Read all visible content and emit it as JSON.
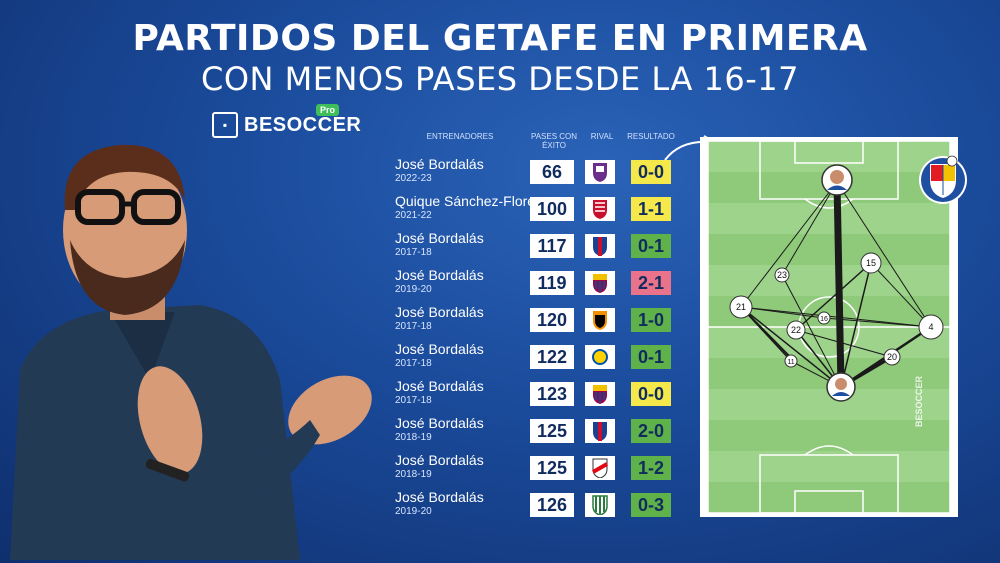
{
  "title_line1": "PARTIDOS DEL GETAFE EN PRIMERA",
  "title_line2": "CON MENOS PASES DESDE LA 16-17",
  "brand": {
    "name": "BESOCCER",
    "badge": "Pro"
  },
  "headers": {
    "coach": "ENTRENADORES",
    "passes": "PASES CON ÉXITO",
    "rival": "RIVAL",
    "result": "RESULTADO"
  },
  "colors": {
    "draw": "#f4e84a",
    "loss": "#e9738a",
    "win": "#5fb24a",
    "background": "#1a4a9a"
  },
  "matches": [
    {
      "coach": "José Bordalás",
      "season": "2022-23",
      "passes": "66",
      "result": "0-0",
      "outcome": "draw",
      "rival_icon": "valladolid-crest-icon"
    },
    {
      "coach": "Quique Sánchez-Flores",
      "season": "2021-22",
      "passes": "100",
      "result": "1-1",
      "outcome": "draw",
      "rival_icon": "granada-crest-icon"
    },
    {
      "coach": "José Bordalás",
      "season": "2017-18",
      "passes": "117",
      "result": "0-1",
      "outcome": "win",
      "rival_icon": "eibar-crest-icon"
    },
    {
      "coach": "José Bordalás",
      "season": "2019-20",
      "passes": "119",
      "result": "2-1",
      "outcome": "loss",
      "rival_icon": "barcelona-crest-icon"
    },
    {
      "coach": "José Bordalás",
      "season": "2017-18",
      "passes": "120",
      "result": "1-0",
      "outcome": "win",
      "rival_icon": "valencia-crest-icon"
    },
    {
      "coach": "José Bordalás",
      "season": "2017-18",
      "passes": "122",
      "result": "0-1",
      "outcome": "win",
      "rival_icon": "las-palmas-crest-icon"
    },
    {
      "coach": "José Bordalás",
      "season": "2017-18",
      "passes": "123",
      "result": "0-0",
      "outcome": "draw",
      "rival_icon": "barcelona-crest-icon"
    },
    {
      "coach": "José Bordalás",
      "season": "2018-19",
      "passes": "125",
      "result": "2-0",
      "outcome": "win",
      "rival_icon": "eibar-crest-icon"
    },
    {
      "coach": "José Bordalás",
      "season": "2018-19",
      "passes": "125",
      "result": "1-2",
      "outcome": "win",
      "rival_icon": "rayo-crest-icon"
    },
    {
      "coach": "José Bordalás",
      "season": "2019-20",
      "passes": "126",
      "result": "0-3",
      "outcome": "win",
      "rival_icon": "leganes-crest-icon"
    }
  ],
  "pitch": {
    "club_badge_text": "GETAFE C.F. S.A.D.",
    "watermark": "BESOCCER",
    "players": [
      "23",
      "15",
      "21",
      "16",
      "22",
      "4",
      "11",
      "20"
    ]
  }
}
